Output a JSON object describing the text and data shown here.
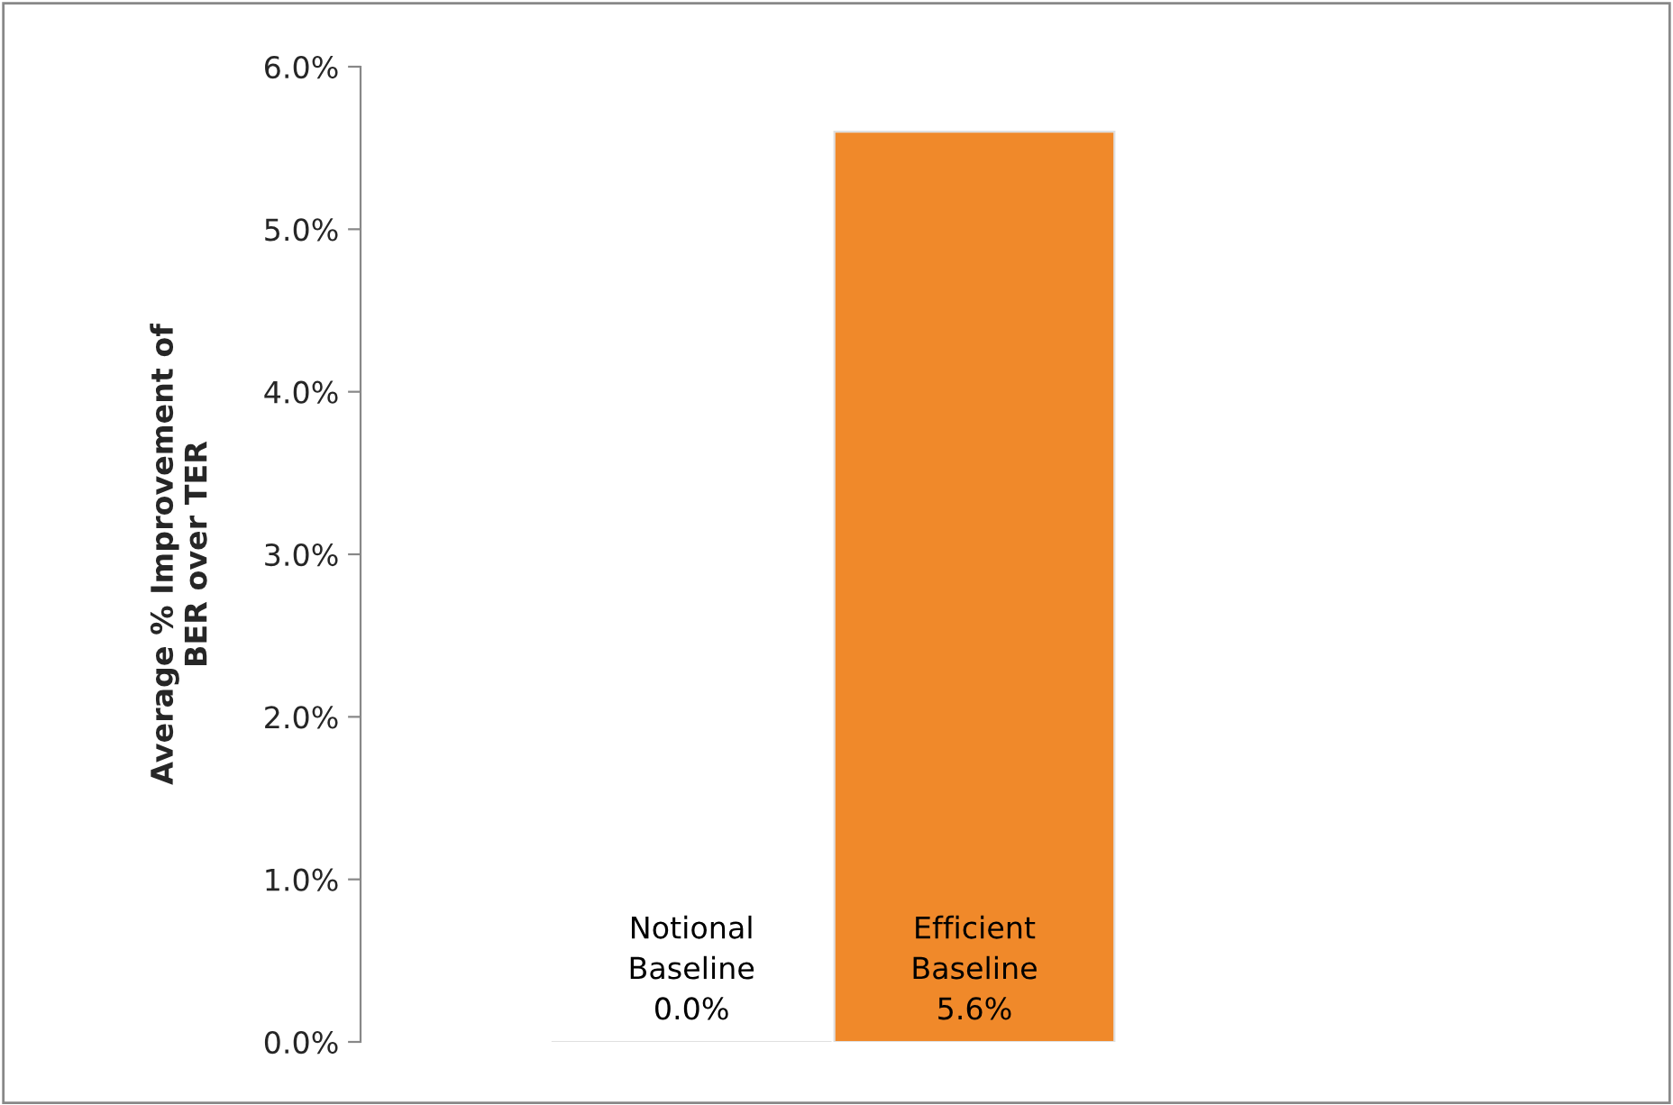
{
  "chart_data": {
    "type": "bar",
    "ylabel": "Average % Improvement of\nBER over TER",
    "categories": [
      "Notional\nBaseline",
      "Efficient\nBaseline"
    ],
    "values": [
      0.0,
      5.6
    ],
    "value_labels": [
      "0.0%",
      "5.6%"
    ],
    "colors": [
      "#ffffff",
      "#f0892a"
    ],
    "ylim": [
      0,
      6
    ],
    "yticks": [
      {
        "value": 0,
        "label": "0.0%"
      },
      {
        "value": 1,
        "label": "1.0%"
      },
      {
        "value": 2,
        "label": "2.0%"
      },
      {
        "value": 3,
        "label": "3.0%"
      },
      {
        "value": 4,
        "label": "4.0%"
      },
      {
        "value": 5,
        "label": "5.0%"
      },
      {
        "value": 6,
        "label": "6.0%"
      }
    ],
    "grid": false,
    "legend": false
  }
}
